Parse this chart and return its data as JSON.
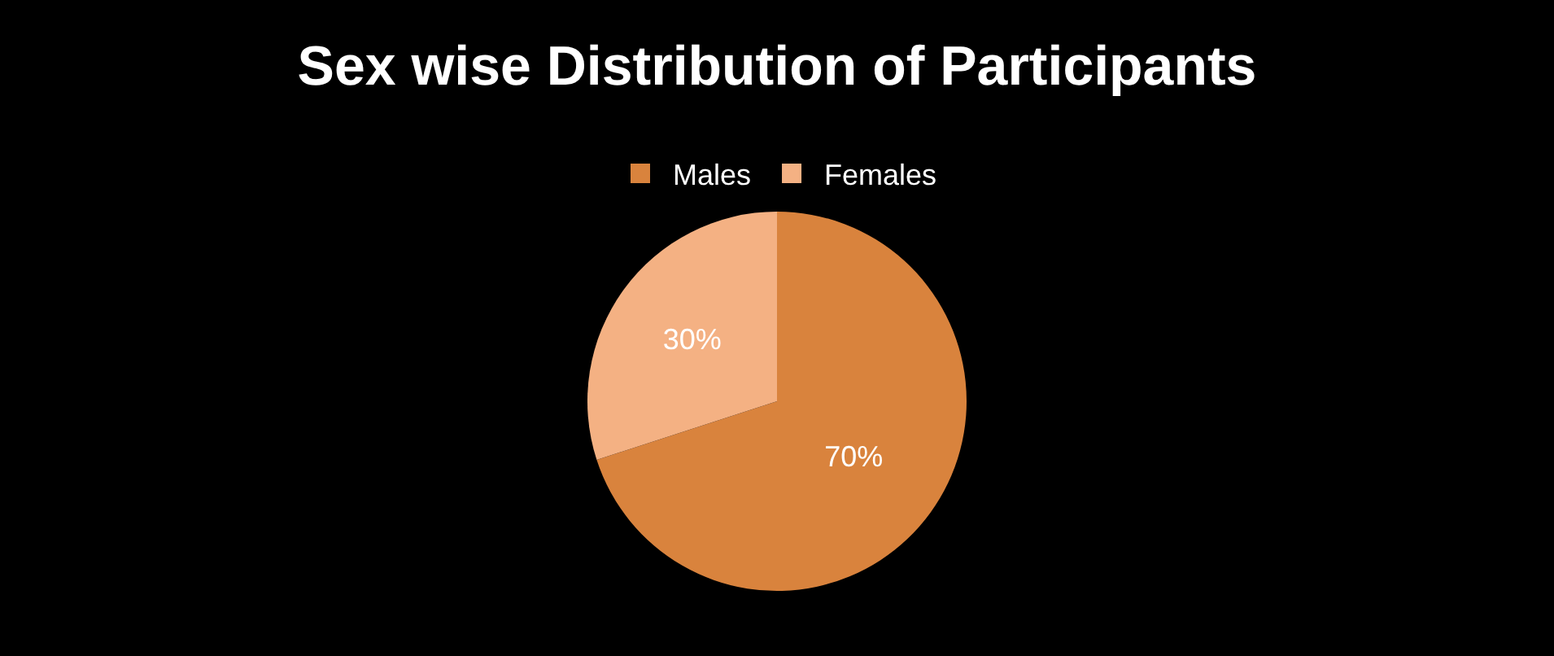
{
  "chart_data": {
    "type": "pie",
    "title": "Sex wise Distribution of Participants",
    "categories": [
      "Males",
      "Females"
    ],
    "values": [
      70,
      30
    ],
    "colors": [
      "#d9833d",
      "#f4b183"
    ],
    "value_labels": [
      "70%",
      "30%"
    ],
    "legend": "top"
  }
}
